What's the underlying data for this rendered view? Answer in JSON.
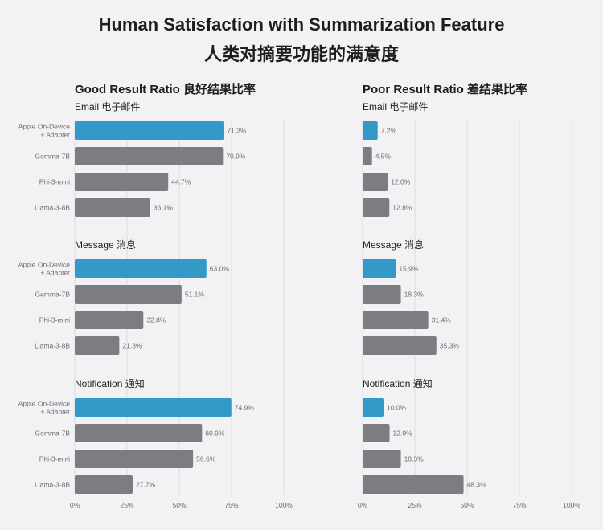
{
  "title_en": "Human Satisfaction with Summarization Feature",
  "title_zh": "人类对摘要功能的满意度",
  "chart_data": {
    "type": "bar",
    "orientation": "horizontal",
    "xlim": [
      0,
      100
    ],
    "x_ticks": [
      "0%",
      "25%",
      "50%",
      "75%",
      "100%"
    ],
    "grid": true,
    "categories": [
      "Apple On-Device\n+ Adapter",
      "Gemma-7B",
      "Phi-3-mini",
      "Llama-3-8B"
    ],
    "colors": {
      "highlight": "#3399c6",
      "default": "#7d7c80"
    },
    "columns": [
      {
        "title": "Good Result Ratio  良好结果比率",
        "sections": [
          {
            "title": "Email  电子邮件",
            "values": [
              71.3,
              70.9,
              44.7,
              36.1
            ]
          },
          {
            "title": "Message  消息",
            "values": [
              63.0,
              51.1,
              32.8,
              21.3
            ]
          },
          {
            "title": "Notification  通知",
            "values": [
              74.9,
              60.9,
              56.6,
              27.7
            ]
          }
        ]
      },
      {
        "title": "Poor Result Ratio  差结果比率",
        "sections": [
          {
            "title": "Email  电子邮件",
            "values": [
              7.2,
              4.5,
              12.0,
              12.8
            ]
          },
          {
            "title": "Message  消息",
            "values": [
              15.9,
              18.3,
              31.4,
              35.3
            ]
          },
          {
            "title": "Notification  通知",
            "values": [
              10.0,
              12.9,
              18.3,
              48.3
            ]
          }
        ]
      }
    ]
  }
}
